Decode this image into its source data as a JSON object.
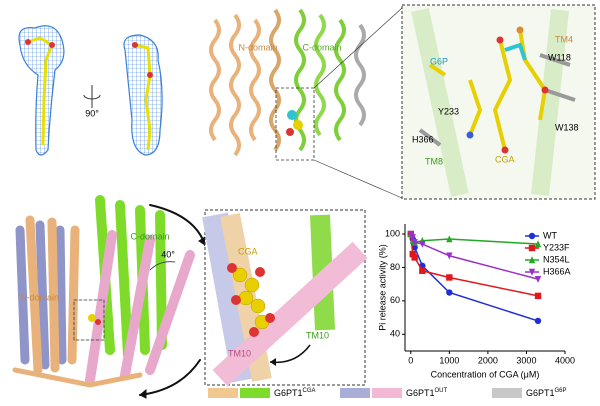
{
  "top_left": {
    "rotation": "90°"
  },
  "top_middle": {
    "n_domain": "N-domain",
    "c_domain": "C-domain"
  },
  "top_inset": {
    "g6p": "G6P",
    "tm4": "TM4",
    "w118": "W118",
    "y233": "Y233",
    "w138": "W138",
    "h366": "H366",
    "tm8": "TM8",
    "cga": "CGA"
  },
  "bottom_left": {
    "c_domain": "C-domain",
    "angle": "40°",
    "n_domain": "N-domain"
  },
  "bottom_inset": {
    "cga": "CGA",
    "tm10_green": "TM10",
    "tm10_pink": "TM10"
  },
  "legend": [
    {
      "name": "G6PT1",
      "sup": "CGA"
    },
    {
      "name": "G6PT1",
      "sup": "OUT"
    },
    {
      "name": "G6PT1",
      "sup": "G6P"
    }
  ],
  "chart_data": {
    "type": "line",
    "xlabel": "Concentration of CGA (μM)",
    "ylabel": "Pi release activity (%)",
    "x": [
      0,
      50,
      100,
      300,
      1000,
      3300
    ],
    "xlim": [
      -150,
      4000
    ],
    "xticks": [
      0,
      1000,
      2000,
      3000,
      4000
    ],
    "ylim": [
      30,
      106
    ],
    "yticks": [
      40,
      60,
      80,
      100
    ],
    "legend": "upper right",
    "series": [
      {
        "name": "WT",
        "color": "#1f2fd6",
        "marker": "circle",
        "values": [
          100,
          97,
          92,
          81,
          65,
          48
        ]
      },
      {
        "name": "Y233F",
        "color": "#e0181c",
        "marker": "square",
        "values": [
          100,
          88,
          86,
          78,
          74,
          63
        ]
      },
      {
        "name": "N354L",
        "color": "#22a822",
        "marker": "triangle-up",
        "values": [
          100,
          96,
          95,
          96,
          97,
          94
        ]
      },
      {
        "name": "H366A",
        "color": "#9b30c8",
        "marker": "triangle-down",
        "values": [
          100,
          98,
          95,
          94,
          87,
          73
        ]
      }
    ]
  }
}
